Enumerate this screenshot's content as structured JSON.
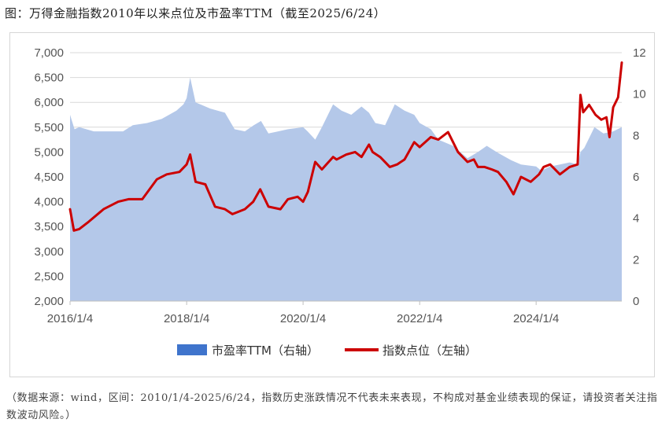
{
  "title": "图：万得金融指数2010年以来点位及市盈率TTM（截至2025/6/24）",
  "note": "（数据来源：wind，区间：2010/1/4-2025/6/24，指数历史涨跌情况不代表未来表现，不构成对基金业绩表现的保证，请投资者关注指数波动风险。）",
  "colors": {
    "pe_fill": "#b4c8e9",
    "index_line": "#cc0000",
    "legend_pe": "#3f74cc",
    "grid": "#d9d9d9"
  },
  "chart_data": {
    "type": "area+line",
    "x_range": [
      "2016/1/4",
      "2025/6/24"
    ],
    "x_ticks": [
      "2016/1/4",
      "2018/1/4",
      "2020/1/4",
      "2022/1/4",
      "2024/1/4"
    ],
    "y_left": {
      "ticks": [
        "2,000",
        "2,500",
        "3,000",
        "3,500",
        "4,000",
        "4,500",
        "5,000",
        "5,500",
        "6,000",
        "6,500",
        "7,000"
      ],
      "range": [
        2000,
        7000
      ]
    },
    "y_right": {
      "ticks": [
        "0",
        "2",
        "4",
        "6",
        "8",
        "10",
        "12"
      ],
      "range": [
        0,
        12
      ]
    },
    "legend": [
      "市盈率TTM（右轴）",
      "指数点位（左轴）"
    ],
    "legend_position": "bottom",
    "series": [
      {
        "name": "市盈率TTM（右轴）",
        "axis": "right",
        "type": "area",
        "x": [
          "2016/1/4",
          "2016/2/1",
          "2016/3/1",
          "2016/6/1",
          "2016/9/1",
          "2016/12/1",
          "2017/2/1",
          "2017/5/1",
          "2017/8/1",
          "2017/11/1",
          "2017/12/15",
          "2018/1/4",
          "2018/1/26",
          "2018/3/1",
          "2018/6/1",
          "2018/9/1",
          "2018/11/1",
          "2019/1/4",
          "2019/3/1",
          "2019/4/15",
          "2019/6/1",
          "2019/8/1",
          "2019/10/1",
          "2020/1/4",
          "2020/2/1",
          "2020/3/20",
          "2020/5/1",
          "2020/7/10",
          "2020/9/1",
          "2020/11/1",
          "2021/1/4",
          "2021/2/20",
          "2021/4/1",
          "2021/6/1",
          "2021/8/1",
          "2021/10/1",
          "2021/12/1",
          "2022/1/4",
          "2022/3/15",
          "2022/5/1",
          "2022/8/1",
          "2022/10/31",
          "2023/1/4",
          "2023/3/1",
          "2023/5/1",
          "2023/8/1",
          "2023/10/1",
          "2024/1/4",
          "2024/2/5",
          "2024/4/1",
          "2024/6/1",
          "2024/8/1",
          "2024/9/20",
          "2024/10/8",
          "2024/11/1",
          "2025/1/4",
          "2025/3/1",
          "2025/5/1",
          "2025/6/24"
        ],
        "values": [
          9.0,
          8.3,
          8.4,
          8.2,
          8.2,
          8.2,
          8.5,
          8.6,
          8.8,
          9.2,
          9.5,
          9.8,
          10.8,
          9.6,
          9.3,
          9.1,
          8.3,
          8.2,
          8.5,
          8.7,
          8.1,
          8.2,
          8.3,
          8.4,
          8.2,
          7.8,
          8.4,
          9.5,
          9.2,
          9.0,
          9.4,
          9.1,
          8.6,
          8.5,
          9.5,
          9.2,
          9.0,
          8.6,
          8.3,
          7.8,
          7.5,
          6.9,
          7.2,
          7.5,
          7.2,
          6.8,
          6.6,
          6.5,
          6.3,
          6.5,
          6.6,
          6.7,
          6.6,
          7.2,
          7.4,
          8.4,
          8.1,
          8.2,
          8.4
        ]
      },
      {
        "name": "指数点位（左轴）",
        "axis": "left",
        "type": "line",
        "x": [
          "2016/1/4",
          "2016/1/28",
          "2016/3/1",
          "2016/5/1",
          "2016/8/1",
          "2016/11/1",
          "2017/1/4",
          "2017/4/1",
          "2017/7/1",
          "2017/9/1",
          "2017/11/20",
          "2018/1/4",
          "2018/1/26",
          "2018/3/1",
          "2018/5/1",
          "2018/7/1",
          "2018/9/1",
          "2018/10/18",
          "2019/1/4",
          "2019/2/25",
          "2019/4/10",
          "2019/6/1",
          "2019/8/15",
          "2019/10/1",
          "2019/12/1",
          "2020/1/4",
          "2020/2/3",
          "2020/3/20",
          "2020/5/1",
          "2020/7/10",
          "2020/8/1",
          "2020/10/1",
          "2020/11/25",
          "2021/1/4",
          "2021/2/20",
          "2021/3/15",
          "2021/5/1",
          "2021/7/1",
          "2021/8/15",
          "2021/10/1",
          "2021/12/1",
          "2022/1/4",
          "2022/3/15",
          "2022/5/1",
          "2022/7/1",
          "2022/9/1",
          "2022/10/31",
          "2022/12/10",
          "2023/1/4",
          "2023/2/15",
          "2023/4/1",
          "2023/5/10",
          "2023/7/1",
          "2023/8/15",
          "2023/10/1",
          "2023/12/1",
          "2024/1/22",
          "2024/2/20",
          "2024/4/1",
          "2024/6/1",
          "2024/8/1",
          "2024/9/20",
          "2024/10/8",
          "2024/10/25",
          "2024/12/1",
          "2025/1/10",
          "2025/2/15",
          "2025/3/20",
          "2025/4/8",
          "2025/5/1",
          "2025/6/1",
          "2025/6/24"
        ],
        "values": [
          3850,
          3420,
          3450,
          3600,
          3850,
          4000,
          4050,
          4050,
          4450,
          4550,
          4600,
          4750,
          4950,
          4400,
          4350,
          3900,
          3850,
          3750,
          3850,
          4000,
          4250,
          3900,
          3850,
          4050,
          4100,
          4000,
          4200,
          4800,
          4650,
          4900,
          4850,
          4950,
          5000,
          4900,
          5150,
          5000,
          4900,
          4700,
          4750,
          4850,
          5200,
          5100,
          5300,
          5250,
          5400,
          5000,
          4800,
          4850,
          4700,
          4700,
          4650,
          4600,
          4400,
          4150,
          4500,
          4400,
          4550,
          4700,
          4750,
          4550,
          4700,
          4750,
          6150,
          5800,
          5950,
          5750,
          5650,
          5700,
          5300,
          5900,
          6100,
          6800
        ]
      }
    ]
  }
}
